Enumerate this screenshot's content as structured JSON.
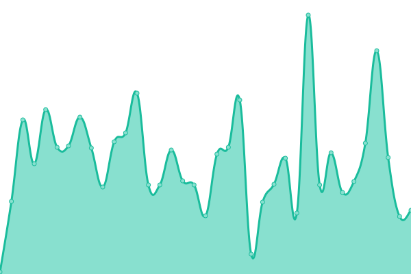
{
  "chart_data": {
    "type": "area",
    "title": "",
    "xlabel": "",
    "ylabel": "",
    "grid": false,
    "legend": "none",
    "smooth": true,
    "ylim": [
      0,
      400
    ],
    "x": [
      0,
      1,
      2,
      3,
      4,
      5,
      6,
      7,
      8,
      9,
      10,
      11,
      12,
      13,
      14,
      15,
      16,
      17,
      18,
      19,
      20,
      21,
      22,
      23,
      24,
      25,
      26,
      27,
      28,
      29,
      30,
      31,
      32,
      33,
      34,
      35,
      36
    ],
    "series": [
      {
        "values": [
          3,
          106,
          225,
          161,
          240,
          185,
          187,
          229,
          184,
          127,
          193,
          206,
          264,
          130,
          130,
          181,
          136,
          130,
          85,
          175,
          185,
          254,
          29,
          105,
          131,
          169,
          89,
          378,
          130,
          177,
          119,
          135,
          191,
          326,
          170,
          84,
          93
        ],
        "line_color": "#1abc9c",
        "fill_color": "#88e0cf",
        "marker_color": "#88e0cf"
      }
    ]
  }
}
